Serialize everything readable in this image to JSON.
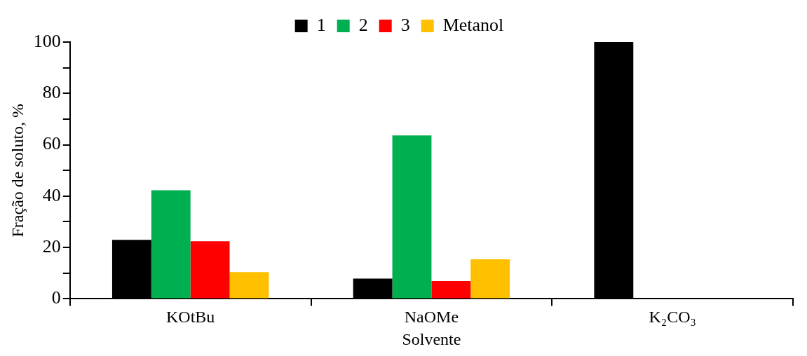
{
  "chart_data": {
    "type": "bar",
    "xlabel": "Solvente",
    "ylabel": "Fração de soluto, %",
    "categories": [
      "KOtBu",
      "NaOMe",
      "K₂CO₃"
    ],
    "series": [
      {
        "name": "1",
        "color": "#000000",
        "values": [
          23.0,
          7.9,
          100
        ]
      },
      {
        "name": "2",
        "color": "#00b050",
        "values": [
          42.3,
          63.6,
          null
        ]
      },
      {
        "name": "3",
        "color": "#ff0000",
        "values": [
          22.4,
          6.9,
          null
        ]
      },
      {
        "name": "Metanol",
        "color": "#ffc000",
        "values": [
          10.4,
          15.4,
          null
        ]
      }
    ],
    "ylim": [
      0,
      100
    ],
    "yticks": [
      0,
      {
        "value": 10,
        "label": null
      },
      20,
      {
        "value": 30,
        "label": null
      },
      40,
      {
        "value": 50,
        "label": null
      },
      60,
      {
        "value": 70,
        "label": null
      },
      80,
      {
        "value": 90,
        "label": null
      },
      100
    ],
    "grid": false,
    "legend": "top"
  }
}
